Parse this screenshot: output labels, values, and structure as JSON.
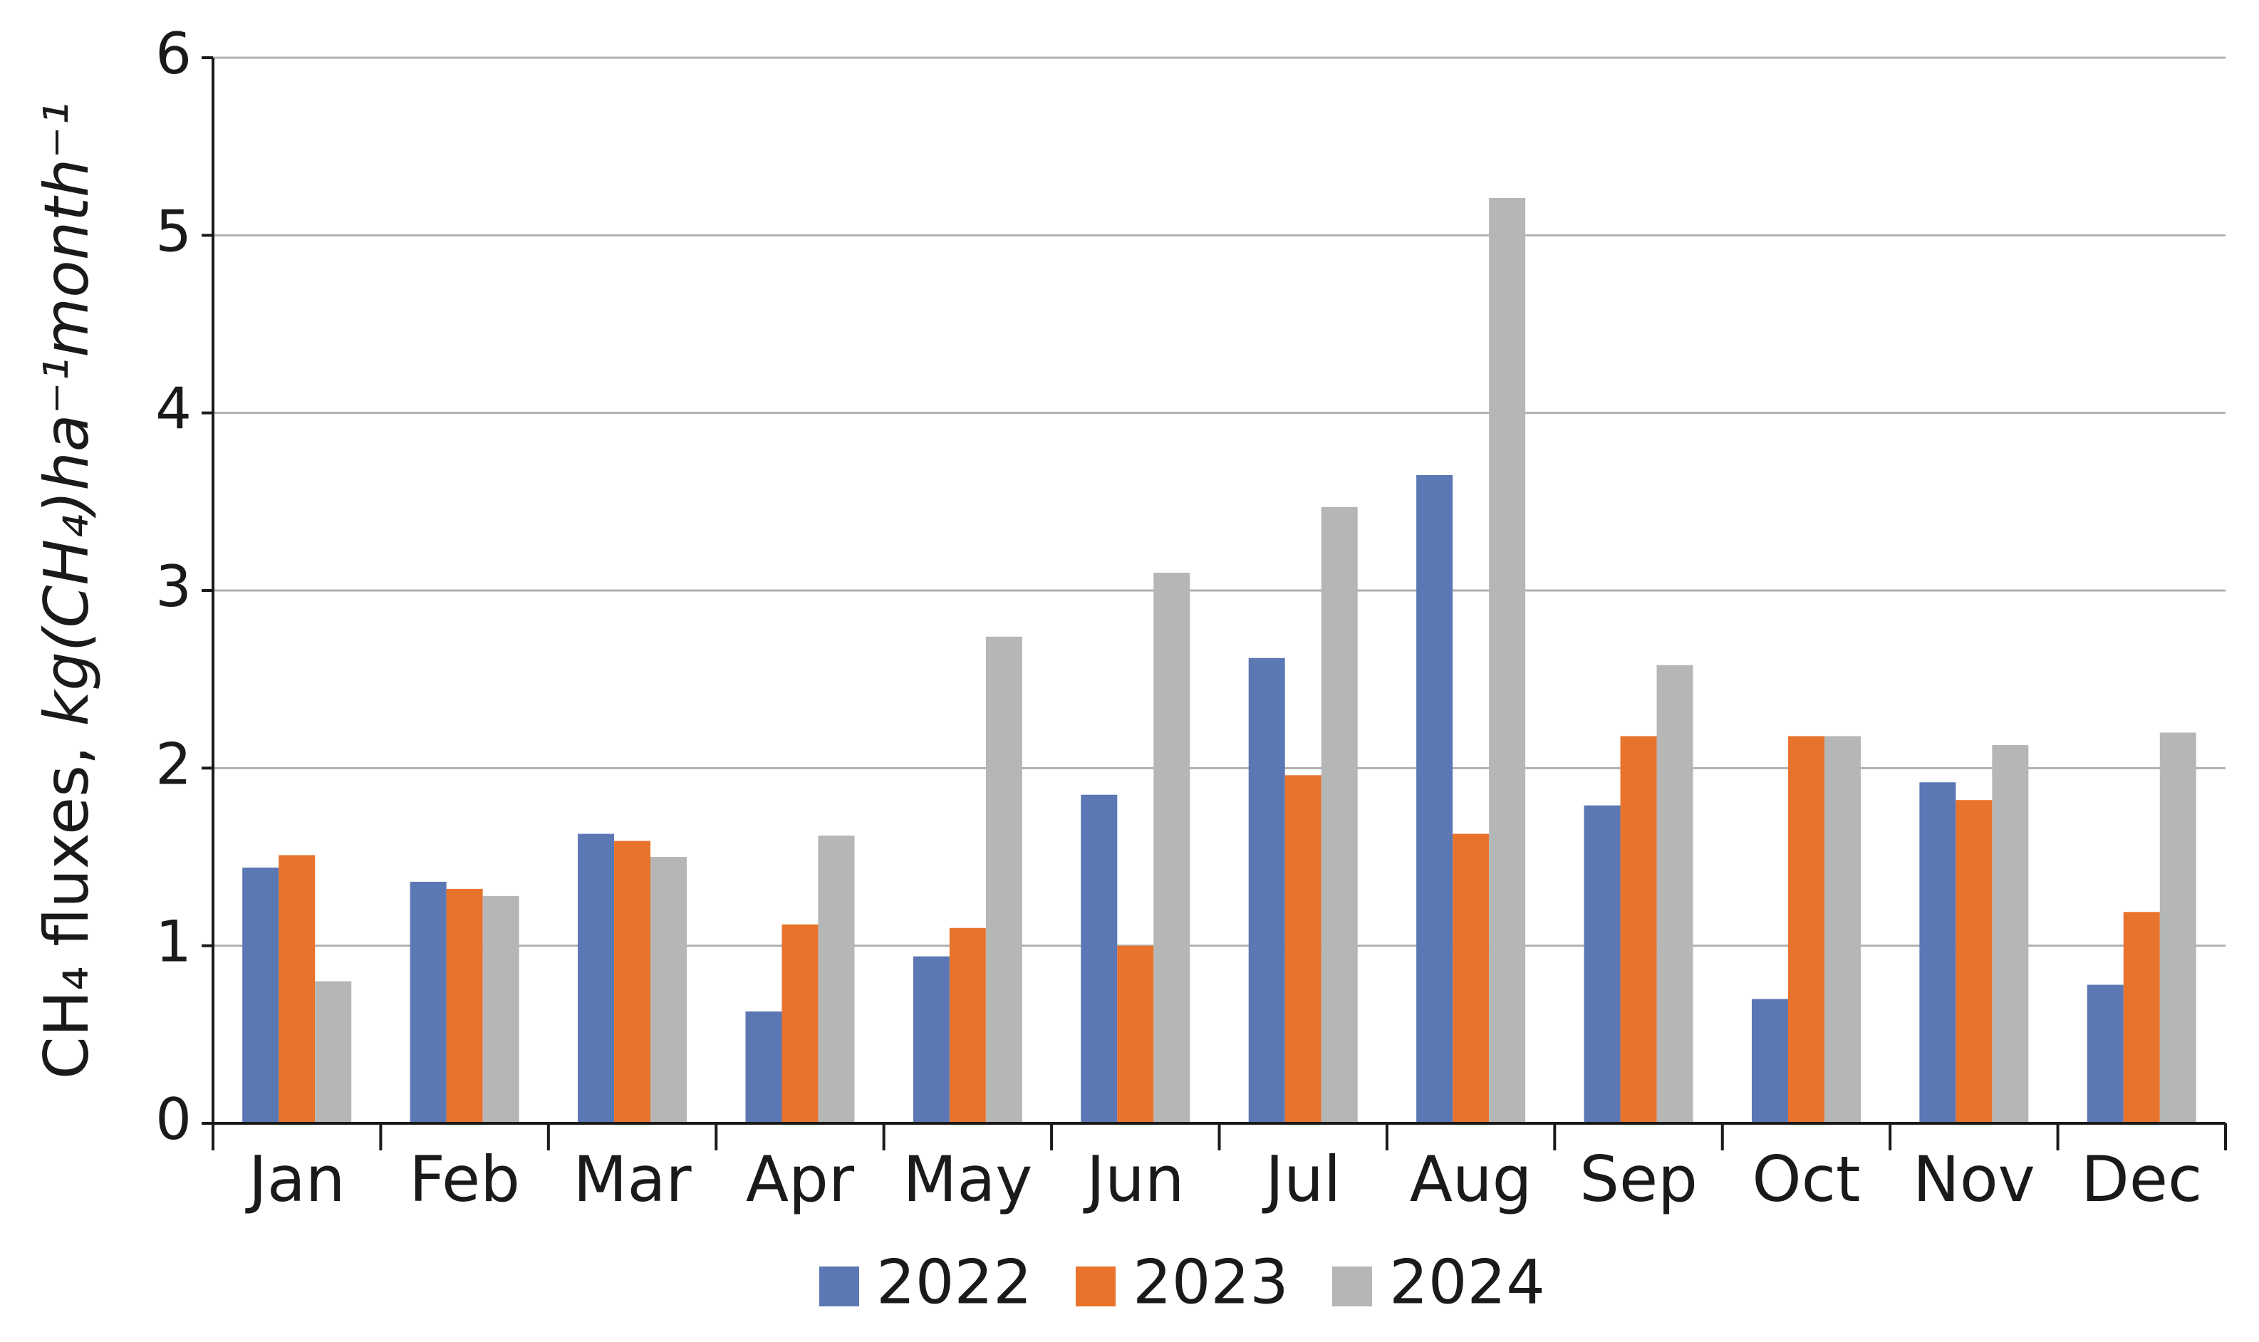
{
  "chart_data": {
    "type": "bar",
    "y_label": [
      "CH₄ fluxes, ",
      "kg(CH₄)ha⁻¹month⁻¹"
    ],
    "categories": [
      "Jan",
      "Feb",
      "Mar",
      "Apr",
      "May",
      "Jun",
      "Jul",
      "Aug",
      "Sep",
      "Oct",
      "Nov",
      "Dec"
    ],
    "series": [
      {
        "name": "2022",
        "color": "#5b78b4",
        "values": [
          1.44,
          1.36,
          1.63,
          0.63,
          0.94,
          1.85,
          2.62,
          3.65,
          1.79,
          0.7,
          1.92,
          0.78
        ]
      },
      {
        "name": "2023",
        "color": "#e8732c",
        "values": [
          1.51,
          1.32,
          1.59,
          1.12,
          1.1,
          1.0,
          1.96,
          1.63,
          2.18,
          2.18,
          1.82,
          1.19
        ]
      },
      {
        "name": "2024",
        "color": "#b5b6b6",
        "values": [
          0.8,
          1.28,
          1.5,
          1.62,
          2.74,
          3.1,
          3.47,
          5.21,
          2.58,
          2.18,
          2.13,
          2.2
        ]
      }
    ],
    "ylim": [
      0,
      6
    ],
    "yticks": [
      0,
      1,
      2,
      3,
      4,
      5,
      6
    ],
    "grid": true,
    "legend": "bottom"
  }
}
